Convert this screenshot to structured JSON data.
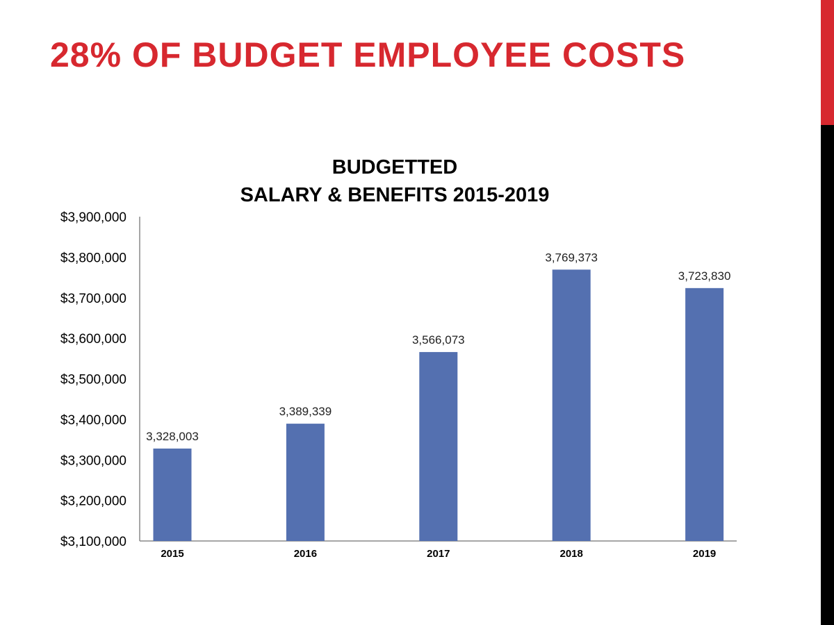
{
  "slide": {
    "title": "28% OF BUDGET EMPLOYEE COSTS",
    "accent_color": "#d7282f",
    "stripe_lower_color": "#000000"
  },
  "chart_data": {
    "type": "bar",
    "title_lines": [
      "BUDGETTED",
      "SALARY & BENEFITS 2015-2019"
    ],
    "categories": [
      "2015",
      "2016",
      "2017",
      "2018",
      "2019"
    ],
    "values": [
      3328003,
      3389339,
      3566073,
      3769373,
      3723830
    ],
    "data_labels": [
      "3,328,003",
      "3,389,339",
      "3,566,073",
      "3,769,373",
      "3,723,830"
    ],
    "ylim": [
      3100000,
      3900000
    ],
    "yticks": [
      3100000,
      3200000,
      3300000,
      3400000,
      3500000,
      3600000,
      3700000,
      3800000,
      3900000
    ],
    "ytick_labels": [
      "$3,100,000",
      "$3,200,000",
      "$3,300,000",
      "$3,400,000",
      "$3,500,000",
      "$3,600,000",
      "$3,700,000",
      "$3,800,000",
      "$3,900,000"
    ],
    "xlabel": "",
    "ylabel": "",
    "grid": false,
    "bar_color": "#5470b0"
  }
}
